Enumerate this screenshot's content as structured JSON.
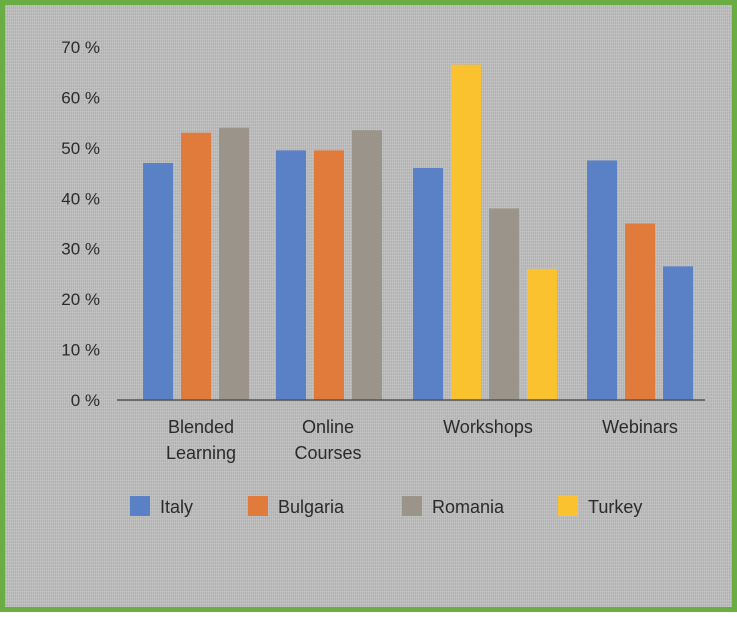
{
  "chart_data": {
    "type": "bar",
    "categories": [
      [
        "Blended",
        "Learning"
      ],
      [
        "Online",
        "Courses"
      ],
      [
        "Workshops"
      ],
      [
        "Webinars"
      ]
    ],
    "y_ticks": [
      "0 %",
      "10 %",
      "20 %",
      "30 %",
      "40 %",
      "50 %",
      "60 %",
      "70 %"
    ],
    "ylim": [
      0,
      70
    ],
    "grid": false,
    "legend_position": "bottom",
    "series": [
      {
        "name": "Italy",
        "color": "#5a81c6"
      },
      {
        "name": "Bulgaria",
        "color": "#e07b3b"
      },
      {
        "name": "Romania",
        "color": "#9b948a"
      },
      {
        "name": "Turkey",
        "color": "#f9c22e"
      }
    ],
    "groups": [
      {
        "bars": [
          {
            "series": "Italy",
            "value": 47
          },
          {
            "series": "Bulgaria",
            "value": 53
          },
          {
            "series": "Romania",
            "value": 54
          }
        ]
      },
      {
        "bars": [
          {
            "series": "Italy",
            "value": 49.5
          },
          {
            "series": "Bulgaria",
            "value": 49.5
          },
          {
            "series": "Romania",
            "value": 53.5
          }
        ]
      },
      {
        "bars": [
          {
            "series": "Italy",
            "value": 46
          },
          {
            "series": "Turkey",
            "value": 66.5
          },
          {
            "series": "Romania",
            "value": 38
          },
          {
            "series": "Turkey",
            "value": 26
          }
        ]
      },
      {
        "bars": [
          {
            "series": "Italy",
            "value": 47.5
          },
          {
            "series": "Bulgaria",
            "value": 35
          },
          {
            "series": "Italy",
            "value": 26.5
          }
        ]
      }
    ]
  }
}
